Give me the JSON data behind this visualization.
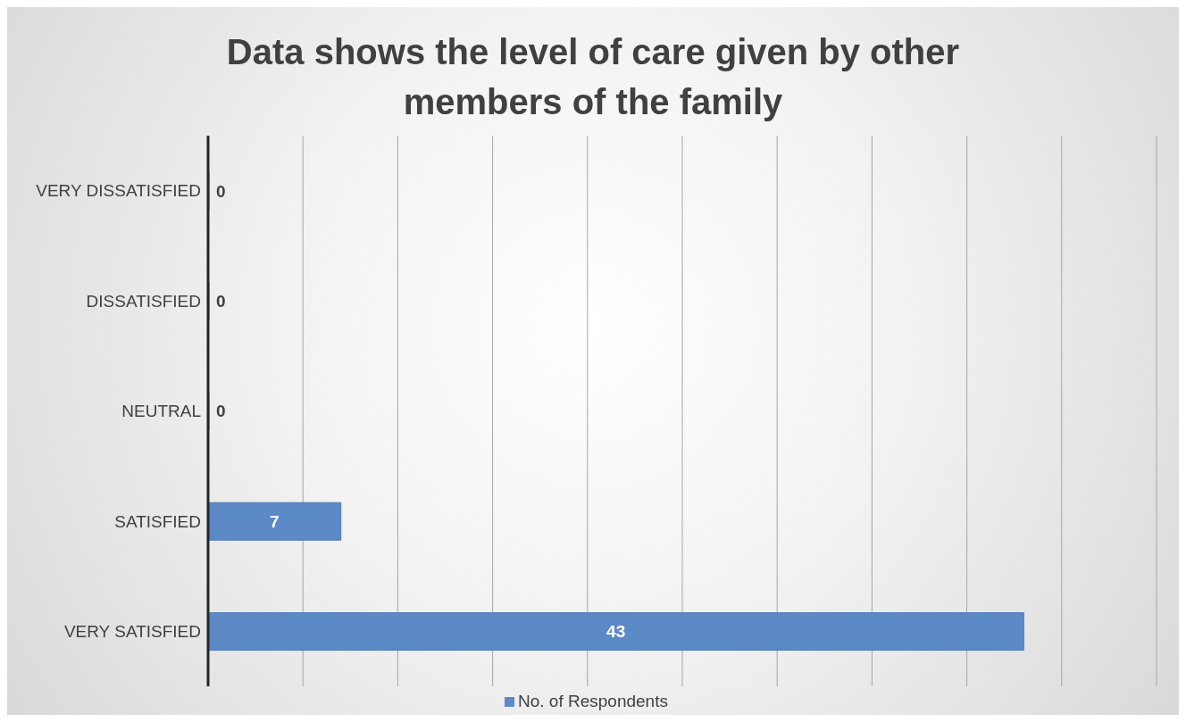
{
  "chart_data": {
    "type": "bar",
    "orientation": "horizontal",
    "title": "Data shows the level of care given by other members of the family",
    "categories": [
      "VERY DISSATISFIED",
      "DISSATISFIED",
      "NEUTRAL",
      "SATISFIED",
      "VERY SATISFIED"
    ],
    "series": [
      {
        "name": "No. of Respondents",
        "color": "#5b8ac6",
        "values": [
          0,
          0,
          0,
          7,
          43
        ]
      }
    ],
    "xlim": [
      0,
      50
    ],
    "tick_labels": "y",
    "grid": "x",
    "legend": "bottom",
    "data_labels": true
  }
}
